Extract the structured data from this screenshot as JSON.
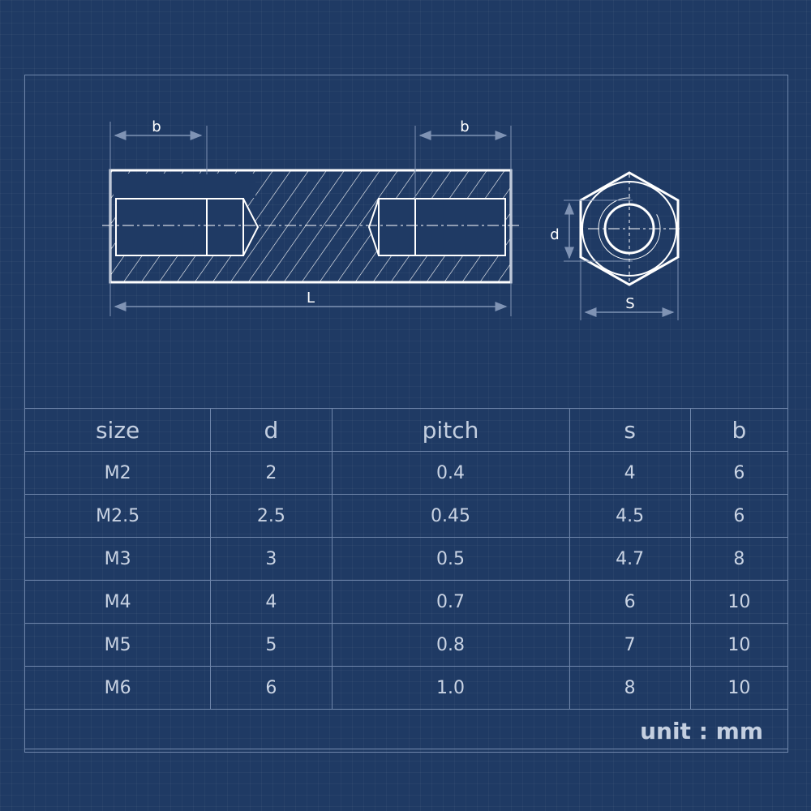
{
  "drawing": {
    "labels": {
      "b_left": "b",
      "b_right": "b",
      "length": "L",
      "diameter": "d",
      "width_across_flats": "S"
    }
  },
  "table": {
    "headers": [
      "size",
      "d",
      "pitch",
      "s",
      "b"
    ],
    "rows": [
      [
        "M2",
        "2",
        "0.4",
        "4",
        "6"
      ],
      [
        "M2.5",
        "2.5",
        "0.45",
        "4.5",
        "6"
      ],
      [
        "M3",
        "3",
        "0.5",
        "4.7",
        "8"
      ],
      [
        "M4",
        "4",
        "0.7",
        "6",
        "10"
      ],
      [
        "M5",
        "5",
        "0.8",
        "7",
        "10"
      ],
      [
        "M6",
        "6",
        "1.0",
        "8",
        "10"
      ]
    ],
    "unit": "unit : mm"
  }
}
